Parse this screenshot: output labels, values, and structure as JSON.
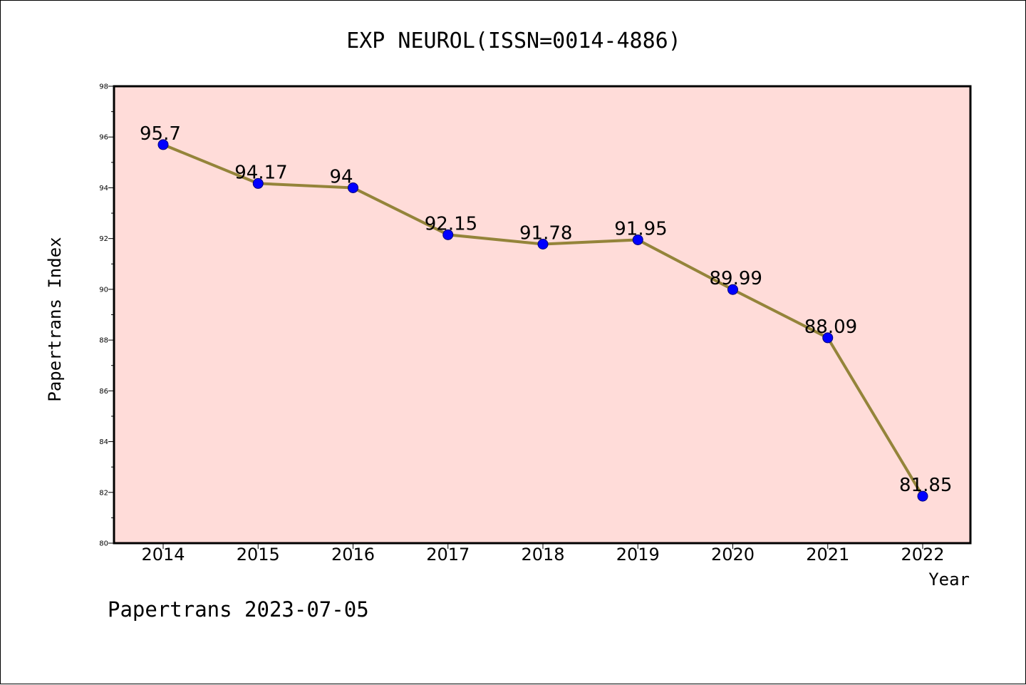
{
  "chart_data": {
    "type": "line",
    "title": "EXP NEUROL(ISSN=0014-4886)",
    "xlabel": "Year",
    "ylabel": "Papertrans Index",
    "categories": [
      "2014",
      "2015",
      "2016",
      "2017",
      "2018",
      "2019",
      "2020",
      "2021",
      "2022"
    ],
    "values": [
      95.7,
      94.17,
      94,
      92.15,
      91.78,
      91.95,
      89.99,
      88.09,
      81.85
    ],
    "data_labels": [
      "95.7",
      "94.17",
      "94",
      "92.15",
      "91.78",
      "91.95",
      "89.99",
      "88.09",
      "81.85"
    ],
    "ylim": [
      80,
      98
    ],
    "yticks": [
      80,
      82,
      84,
      86,
      88,
      90,
      92,
      94,
      96,
      98
    ],
    "grid": false,
    "colors": {
      "plot_background": "#ffdcd9",
      "line": "#94843a",
      "marker": "#0000ff",
      "marker_edge": "#00007a"
    }
  },
  "footer": "Papertrans 2023-07-05"
}
